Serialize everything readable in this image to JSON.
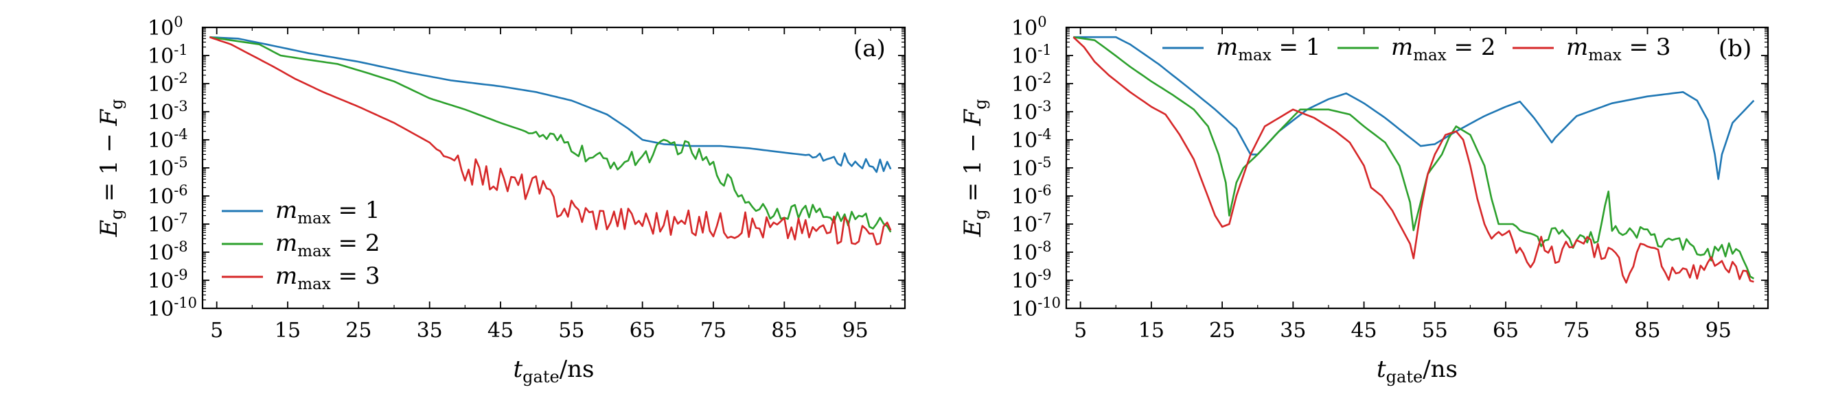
{
  "chart_data": [
    {
      "type": "line",
      "panel_label": "(a)",
      "xlabel": "t_gate/ns",
      "ylabel": "E_g = 1 − F_g",
      "yscale": "log",
      "xlim": [
        3,
        102
      ],
      "ylim": [
        1e-10,
        1
      ],
      "xticks": [
        5,
        15,
        25,
        35,
        45,
        55,
        65,
        75,
        85,
        95
      ],
      "yticks": [
        "10^0",
        "10^-1",
        "10^-2",
        "10^-3",
        "10^-4",
        "10^-5",
        "10^-6",
        "10^-7",
        "10^-8",
        "10^-9",
        "10^-10"
      ],
      "legend_position": "lower-left",
      "series": [
        {
          "name": "m_max = 1",
          "color": "#1f77b4",
          "points": [
            [
              4,
              0.45
            ],
            [
              8,
              0.4
            ],
            [
              12,
              0.25
            ],
            [
              18,
              0.12
            ],
            [
              25,
              0.06
            ],
            [
              32,
              0.025
            ],
            [
              38,
              0.013
            ],
            [
              45,
              0.008
            ],
            [
              50,
              0.005
            ],
            [
              55,
              0.0025
            ],
            [
              60,
              0.0008
            ],
            [
              63,
              0.00025
            ],
            [
              65,
              0.0001
            ],
            [
              68,
              7e-05
            ],
            [
              72,
              6e-05
            ],
            [
              76,
              6e-05
            ],
            [
              80,
              5e-05
            ],
            [
              85,
              3.5e-05
            ],
            [
              90,
              2.5e-05
            ],
            [
              94,
              1.8e-05
            ],
            [
              97,
              1.5e-05
            ],
            [
              100,
              1e-05
            ]
          ],
          "noise": 0.28,
          "noise_start": 88
        },
        {
          "name": "m_max = 2",
          "color": "#2ca02c",
          "points": [
            [
              4,
              0.45
            ],
            [
              7,
              0.35
            ],
            [
              11,
              0.25
            ],
            [
              14,
              0.1
            ],
            [
              18,
              0.07
            ],
            [
              22,
              0.05
            ],
            [
              26,
              0.025
            ],
            [
              30,
              0.012
            ],
            [
              35,
              0.003
            ],
            [
              40,
              0.0012
            ],
            [
              45,
              0.0004
            ],
            [
              50,
              0.00015
            ],
            [
              55,
              6e-05
            ],
            [
              58,
              2e-05
            ],
            [
              62,
              1.5e-05
            ],
            [
              66,
              3e-05
            ],
            [
              69,
              7e-05
            ],
            [
              72,
              4e-05
            ],
            [
              75,
              1e-05
            ],
            [
              78,
              2e-06
            ],
            [
              80,
              6e-07
            ],
            [
              83,
              3e-07
            ],
            [
              87,
              3e-07
            ],
            [
              91,
              2e-07
            ],
            [
              95,
              1.5e-07
            ],
            [
              100,
              1e-07
            ]
          ],
          "noise": 0.3,
          "noise_start": 48
        },
        {
          "name": "m_max = 3",
          "color": "#d62728",
          "points": [
            [
              4,
              0.45
            ],
            [
              7,
              0.25
            ],
            [
              10,
              0.1
            ],
            [
              13,
              0.04
            ],
            [
              16,
              0.015
            ],
            [
              20,
              0.005
            ],
            [
              25,
              0.0015
            ],
            [
              30,
              0.0004
            ],
            [
              35,
              8e-05
            ],
            [
              38,
              1.5e-05
            ],
            [
              42,
              6e-06
            ],
            [
              46,
              3e-06
            ],
            [
              50,
              2e-06
            ],
            [
              53,
              5e-07
            ],
            [
              58,
              2e-07
            ],
            [
              64,
              1.5e-07
            ],
            [
              70,
              1e-07
            ],
            [
              76,
              1e-07
            ],
            [
              82,
              8e-08
            ],
            [
              88,
              6e-08
            ],
            [
              94,
              6e-08
            ],
            [
              100,
              5e-08
            ]
          ],
          "noise": 0.5,
          "noise_start": 36
        }
      ]
    },
    {
      "type": "line",
      "panel_label": "(b)",
      "xlabel": "t_gate/ns",
      "ylabel": "E_g = 1 − F_g",
      "yscale": "log",
      "xlim": [
        3,
        102
      ],
      "ylim": [
        1e-10,
        1
      ],
      "xticks": [
        5,
        15,
        25,
        35,
        45,
        55,
        65,
        75,
        85,
        95
      ],
      "yticks": [
        "10^0",
        "10^-1",
        "10^-2",
        "10^-3",
        "10^-4",
        "10^-5",
        "10^-6",
        "10^-7",
        "10^-8",
        "10^-9",
        "10^-10"
      ],
      "legend_position": "top",
      "series": [
        {
          "name": "m_max = 1",
          "color": "#1f77b4",
          "points": [
            [
              4,
              0.45
            ],
            [
              10,
              0.45
            ],
            [
              12,
              0.25
            ],
            [
              16,
              0.05
            ],
            [
              20,
              0.008
            ],
            [
              24,
              0.0012
            ],
            [
              27,
              0.00025
            ],
            [
              29,
              3e-05
            ],
            [
              30,
              3e-05
            ],
            [
              33,
              0.0002
            ],
            [
              37,
              0.0012
            ],
            [
              40,
              0.0028
            ],
            [
              42.5,
              0.0045
            ],
            [
              45,
              0.002
            ],
            [
              48,
              0.0006
            ],
            [
              51,
              0.00015
            ],
            [
              53,
              6e-05
            ],
            [
              55,
              7e-05
            ],
            [
              58,
              0.0002
            ],
            [
              62,
              0.0007
            ],
            [
              65,
              0.0015
            ],
            [
              67,
              0.0023
            ],
            [
              69,
              0.0006
            ],
            [
              71,
              0.00012
            ],
            [
              71.5,
              8e-05
            ],
            [
              72,
              0.00012
            ],
            [
              75,
              0.0007
            ],
            [
              80,
              0.002
            ],
            [
              85,
              0.0035
            ],
            [
              90,
              0.005
            ],
            [
              92,
              0.0025
            ],
            [
              93.5,
              0.0005
            ],
            [
              94.5,
              3e-05
            ],
            [
              95,
              4e-06
            ],
            [
              95.5,
              3e-05
            ],
            [
              97,
              0.0004
            ],
            [
              100,
              0.0025
            ]
          ],
          "noise": 0,
          "noise_start": 200
        },
        {
          "name": "m_max = 2",
          "color": "#2ca02c",
          "points": [
            [
              4,
              0.45
            ],
            [
              7,
              0.35
            ],
            [
              9,
              0.15
            ],
            [
              12,
              0.04
            ],
            [
              15,
              0.012
            ],
            [
              18,
              0.004
            ],
            [
              21,
              0.0012
            ],
            [
              23,
              0.0003
            ],
            [
              24.5,
              3e-05
            ],
            [
              25.5,
              3e-06
            ],
            [
              26,
              2e-07
            ],
            [
              27,
              3e-06
            ],
            [
              28,
              1e-05
            ],
            [
              30,
              3e-05
            ],
            [
              33,
              0.0002
            ],
            [
              36,
              0.0012
            ],
            [
              40,
              0.0012
            ],
            [
              43,
              0.0008
            ],
            [
              45,
              0.0003
            ],
            [
              48,
              8e-05
            ],
            [
              50,
              1.2e-05
            ],
            [
              51.5,
              6e-07
            ],
            [
              52,
              6e-08
            ],
            [
              53,
              6e-07
            ],
            [
              54,
              6e-06
            ],
            [
              56,
              3e-05
            ],
            [
              57,
              0.00012
            ],
            [
              58,
              0.0003
            ],
            [
              60,
              0.00015
            ],
            [
              62,
              1.2e-05
            ],
            [
              63,
              8e-07
            ],
            [
              64,
              1e-07
            ],
            [
              66,
              1e-07
            ],
            [
              68,
              4e-08
            ],
            [
              70,
              2e-08
            ],
            [
              72,
              6e-08
            ],
            [
              74,
              2e-08
            ],
            [
              76,
              3e-08
            ],
            [
              78,
              4e-08
            ],
            [
              79.5,
              1.2e-06
            ],
            [
              80,
              5e-08
            ],
            [
              82,
              6e-08
            ],
            [
              85,
              4e-08
            ],
            [
              88,
              2e-08
            ],
            [
              91,
              2e-08
            ],
            [
              94,
              8e-09
            ],
            [
              97,
              1.5e-08
            ],
            [
              100,
              1e-09
            ]
          ],
          "noise": 0.25,
          "noise_start": 66
        },
        {
          "name": "m_max = 3",
          "color": "#d62728",
          "points": [
            [
              4,
              0.45
            ],
            [
              5.5,
              0.2
            ],
            [
              7,
              0.06
            ],
            [
              9,
              0.02
            ],
            [
              12,
              0.005
            ],
            [
              15,
              0.0015
            ],
            [
              17,
              0.0008
            ],
            [
              19,
              0.00015
            ],
            [
              21,
              2e-05
            ],
            [
              22.5,
              2e-06
            ],
            [
              24,
              2e-07
            ],
            [
              25,
              8e-08
            ],
            [
              26,
              1e-07
            ],
            [
              27,
              1e-06
            ],
            [
              29,
              3e-05
            ],
            [
              31,
              0.0003
            ],
            [
              35,
              0.0012
            ],
            [
              38,
              0.0006
            ],
            [
              41,
              0.0002
            ],
            [
              43,
              8e-05
            ],
            [
              45,
              1.2e-05
            ],
            [
              46,
              2e-06
            ],
            [
              47.5,
              1e-06
            ],
            [
              49,
              3e-07
            ],
            [
              50,
              1e-07
            ],
            [
              51.5,
              2e-08
            ],
            [
              52,
              6e-09
            ],
            [
              53,
              3e-07
            ],
            [
              54,
              6e-06
            ],
            [
              55,
              3e-05
            ],
            [
              56.5,
              0.00015
            ],
            [
              58,
              0.0002
            ],
            [
              59,
              0.0001
            ],
            [
              60,
              1.2e-05
            ],
            [
              61,
              8e-07
            ],
            [
              62,
              1e-07
            ],
            [
              63,
              3e-08
            ],
            [
              65,
              6e-08
            ],
            [
              67,
              1e-08
            ],
            [
              68.5,
              1.5e-09
            ],
            [
              70,
              2e-08
            ],
            [
              72,
              6e-09
            ],
            [
              74,
              2e-08
            ],
            [
              76,
              3e-08
            ],
            [
              78,
              1e-08
            ],
            [
              80,
              1.5e-08
            ],
            [
              82,
              1e-09
            ],
            [
              84,
              2e-08
            ],
            [
              86,
              1e-08
            ],
            [
              88,
              2e-09
            ],
            [
              90,
              3e-09
            ],
            [
              92,
              2e-09
            ],
            [
              94,
              4e-09
            ],
            [
              96,
              3e-09
            ],
            [
              98,
              2e-09
            ],
            [
              100,
              8e-10
            ]
          ],
          "noise": 0.3,
          "noise_start": 62
        }
      ]
    }
  ]
}
